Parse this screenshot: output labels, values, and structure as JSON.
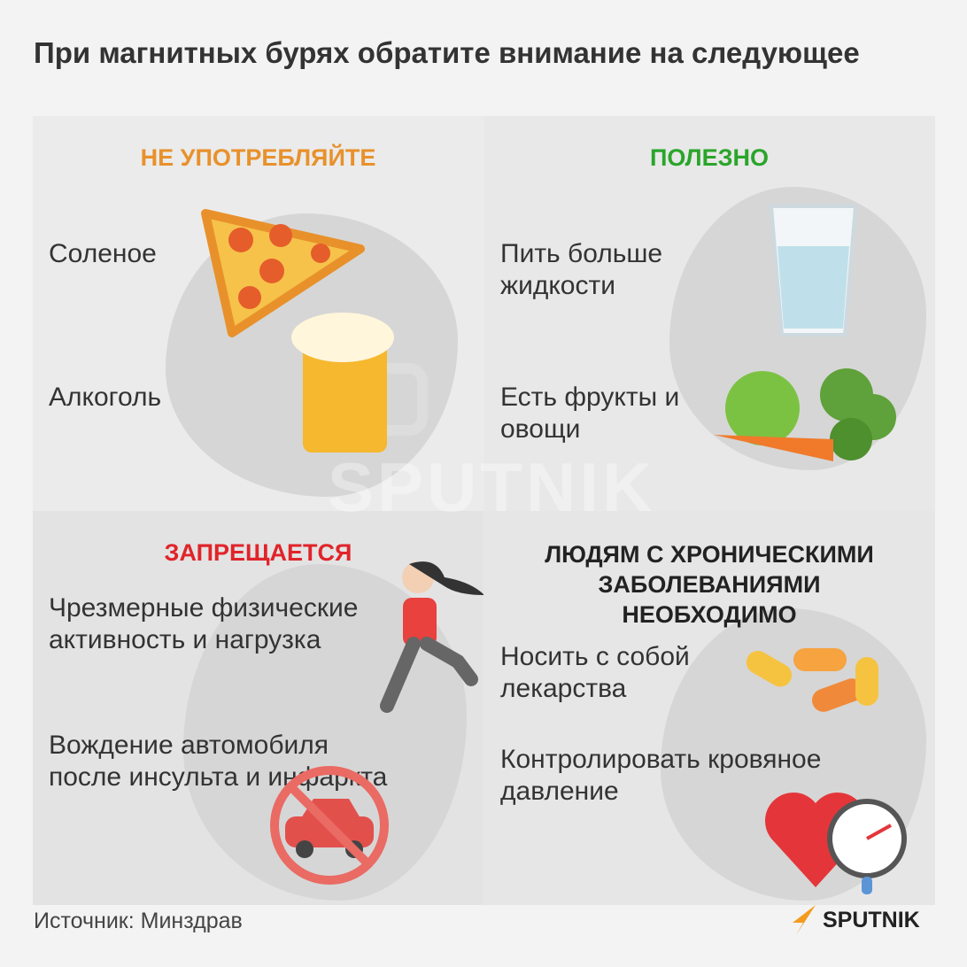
{
  "title": "При магнитных бурях обратите внимание на следующее",
  "panels": [
    {
      "heading": "НЕ УПОТРЕБЛЯЙТЕ",
      "color": "#e8912b",
      "items": [
        "Соленое",
        "Алкоголь"
      ]
    },
    {
      "heading": "ПОЛЕЗНО",
      "color": "#2aa52a",
      "items": [
        "Пить больше жидкости",
        "Есть фрукты и овощи"
      ]
    },
    {
      "heading": "ЗАПРЕЩАЕТСЯ",
      "color": "#e0242a",
      "items": [
        "Чрезмерные физические активность и нагрузка",
        "Вождение автомобиля после инсульта и инфаркта"
      ]
    },
    {
      "heading": "ЛЮДЯМ С ХРОНИЧЕСКИМИ ЗАБОЛЕВАНИЯМИ НЕОБХОДИМО",
      "color": "#222222",
      "items": [
        "Носить с собой лекарства",
        "Контролировать кровяное давление"
      ]
    }
  ],
  "footer": {
    "source": "Источник: Минздрав",
    "logo": "SPUTNIK",
    "watermark": "SPUTNIK"
  }
}
